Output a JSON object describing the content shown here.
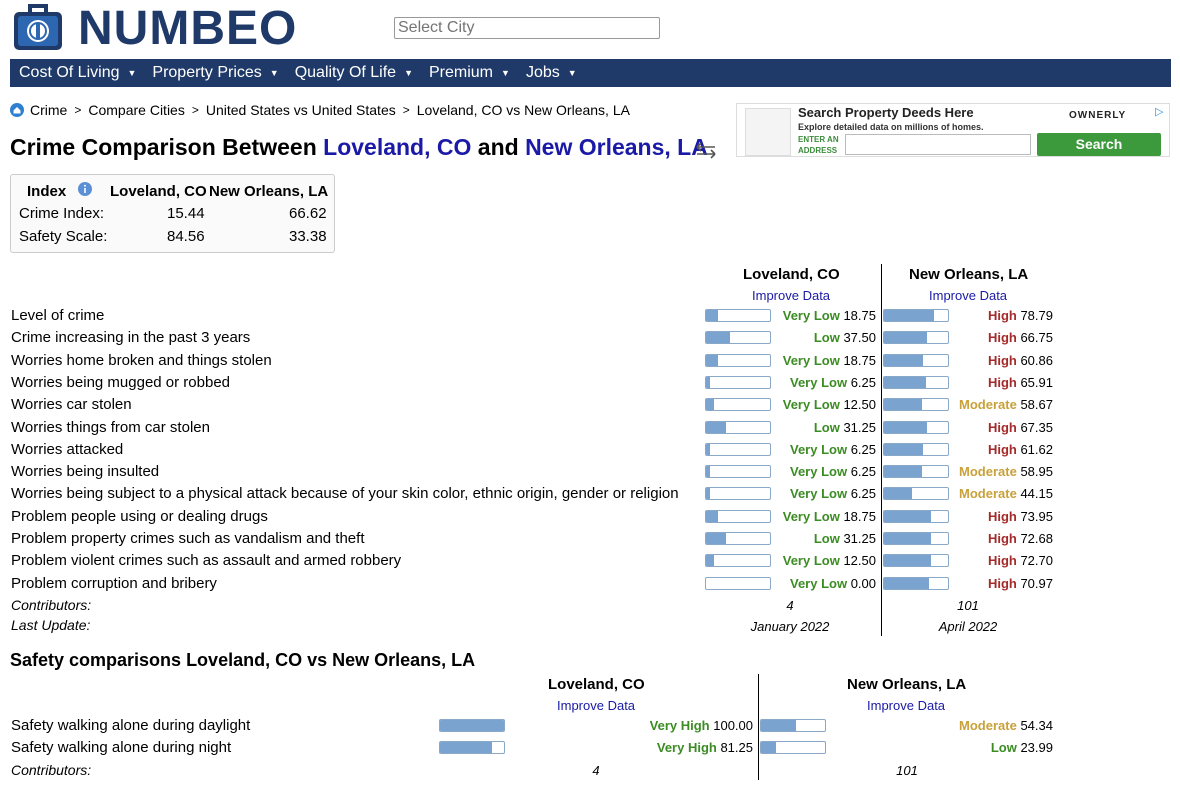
{
  "header": {
    "logo_text": "NUMBEO",
    "search_placeholder": "Select City"
  },
  "nav": [
    "Cost Of Living",
    "Property Prices",
    "Quality Of Life",
    "Premium",
    "Jobs"
  ],
  "breadcrumb": [
    "Crime",
    "Compare Cities",
    "United States vs United States",
    "Loveland, CO vs New Orleans, LA"
  ],
  "title": {
    "prefix": "Crime Comparison Between ",
    "city1": "Loveland, CO",
    "mid": " and ",
    "city2": "New Orleans, LA"
  },
  "ad": {
    "title": "Search Property Deeds Here",
    "subtitle": "Explore detailed data on millions of homes.",
    "enter_label": "ENTER AN ADDRESS",
    "button": "Search",
    "brand": "OWNERLY"
  },
  "index_box": {
    "header": {
      "label": "Index",
      "city1": "Loveland, CO",
      "city2": "New Orleans, LA"
    },
    "rows": [
      {
        "label": "Crime Index:",
        "v1": "15.44",
        "v2": "66.62"
      },
      {
        "label": "Safety Scale:",
        "v1": "84.56",
        "v2": "33.38"
      }
    ]
  },
  "crime_table": {
    "city1": "Loveland, CO",
    "city2": "New Orleans, LA",
    "improve": "Improve Data",
    "rows": [
      {
        "label": "Level of crime",
        "l1": "Very Low",
        "v1": "18.75",
        "l2": "High",
        "v2": "78.79"
      },
      {
        "label": "Crime increasing in the past 3 years",
        "l1": "Low",
        "v1": "37.50",
        "l2": "High",
        "v2": "66.75"
      },
      {
        "label": "Worries home broken and things stolen",
        "l1": "Very Low",
        "v1": "18.75",
        "l2": "High",
        "v2": "60.86"
      },
      {
        "label": "Worries being mugged or robbed",
        "l1": "Very Low",
        "v1": "6.25",
        "l2": "High",
        "v2": "65.91"
      },
      {
        "label": "Worries car stolen",
        "l1": "Very Low",
        "v1": "12.50",
        "l2": "Moderate",
        "v2": "58.67"
      },
      {
        "label": "Worries things from car stolen",
        "l1": "Low",
        "v1": "31.25",
        "l2": "High",
        "v2": "67.35"
      },
      {
        "label": "Worries attacked",
        "l1": "Very Low",
        "v1": "6.25",
        "l2": "High",
        "v2": "61.62"
      },
      {
        "label": "Worries being insulted",
        "l1": "Very Low",
        "v1": "6.25",
        "l2": "Moderate",
        "v2": "58.95"
      },
      {
        "label": "Worries being subject to a physical attack because of your skin color, ethnic origin, gender or religion",
        "l1": "Very Low",
        "v1": "6.25",
        "l2": "Moderate",
        "v2": "44.15"
      },
      {
        "label": "Problem people using or dealing drugs",
        "l1": "Very Low",
        "v1": "18.75",
        "l2": "High",
        "v2": "73.95"
      },
      {
        "label": "Problem property crimes such as vandalism and theft",
        "l1": "Low",
        "v1": "31.25",
        "l2": "High",
        "v2": "72.68"
      },
      {
        "label": "Problem violent crimes such as assault and armed robbery",
        "l1": "Very Low",
        "v1": "12.50",
        "l2": "High",
        "v2": "72.70"
      },
      {
        "label": "Problem corruption and bribery",
        "l1": "Very Low",
        "v1": "0.00",
        "l2": "High",
        "v2": "70.97"
      }
    ],
    "contributors_label": "Contributors:",
    "contributors1": "4",
    "contributors2": "101",
    "update_label": "Last Update:",
    "update1": "January 2022",
    "update2": "April 2022"
  },
  "safety": {
    "title": "Safety comparisons Loveland, CO vs New Orleans, LA",
    "city1": "Loveland, CO",
    "city2": "New Orleans, LA",
    "improve": "Improve Data",
    "rows": [
      {
        "label": "Safety walking alone during daylight",
        "l1": "Very High",
        "v1": "100.00",
        "l2": "Moderate",
        "v2": "54.34"
      },
      {
        "label": "Safety walking alone during night",
        "l1": "Very High",
        "v1": "81.25",
        "l2": "Low",
        "v2": "23.99"
      }
    ],
    "contributors_label": "Contributors:",
    "contributors1": "4",
    "contributors2": "101"
  },
  "colors": {
    "brand": "#1f3a68",
    "link": "#1a1aa6",
    "very_low": "#3c8c24",
    "low": "#3c8c24",
    "moderate": "#c9a13a",
    "high": "#a52a2a",
    "bar": "#7aa3cf"
  }
}
